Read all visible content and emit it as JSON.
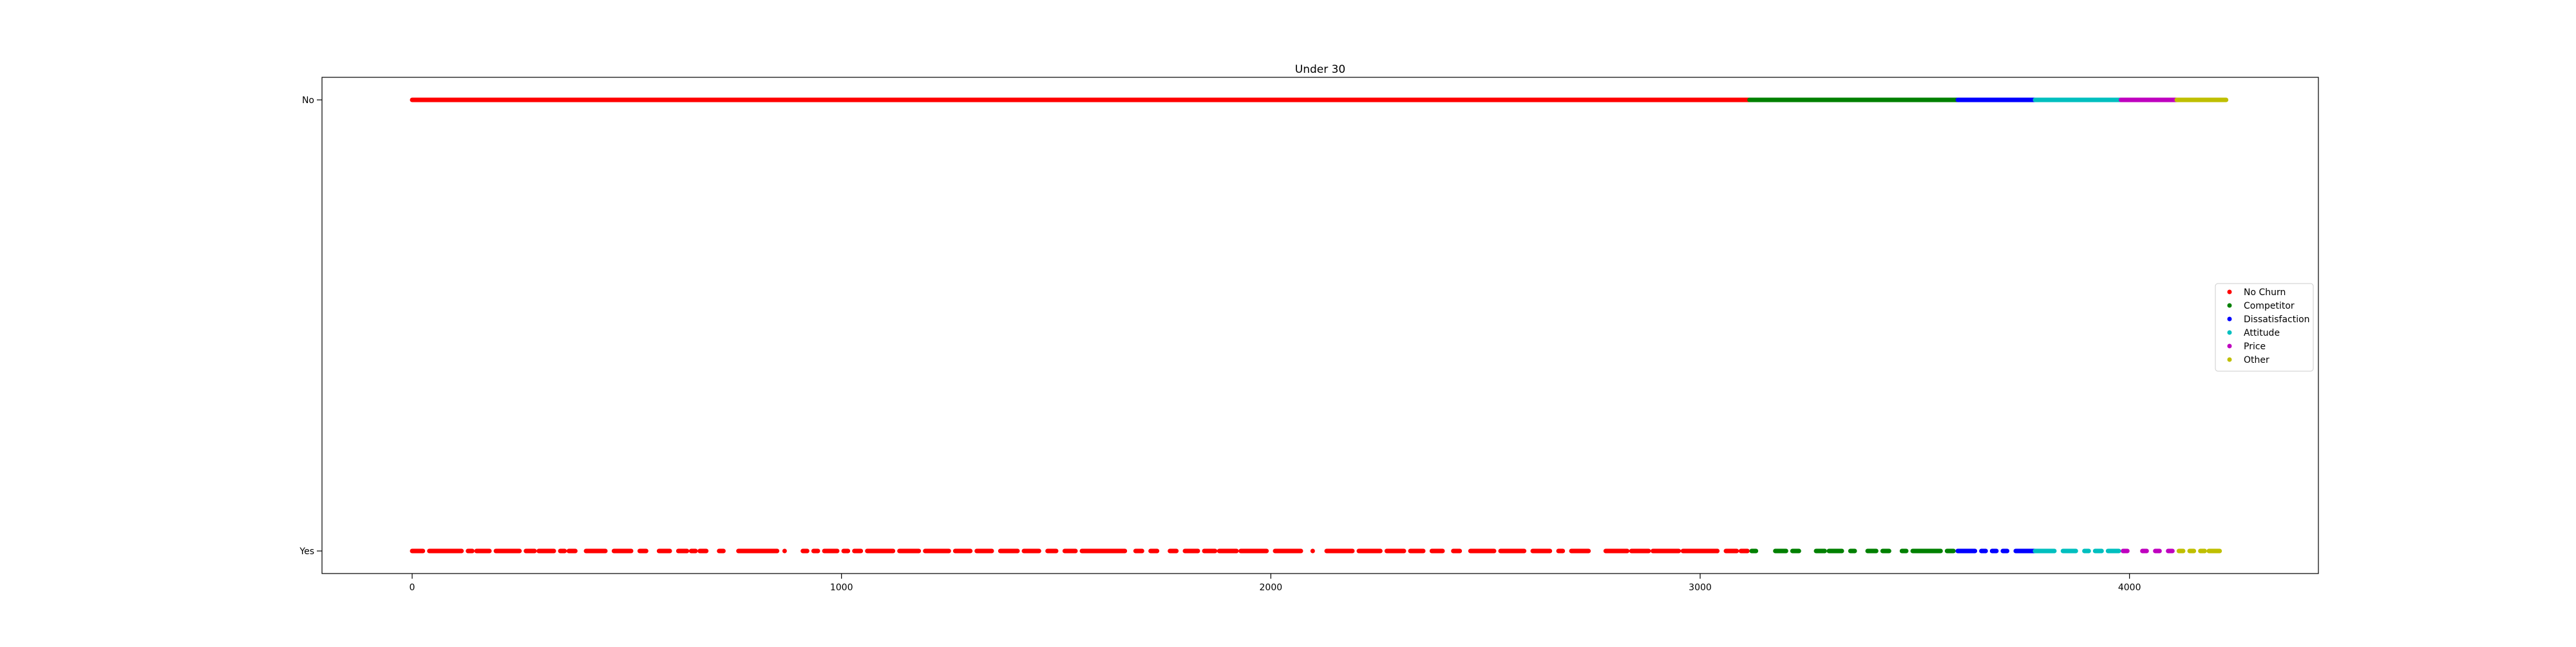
{
  "chart_data": {
    "type": "scatter",
    "title": "Under 30",
    "xlabel": "",
    "ylabel": "",
    "xlim": [
      -210,
      4440
    ],
    "x_ticks": [
      0,
      1000,
      2000,
      3000,
      4000
    ],
    "y_categories": [
      "Yes",
      "No"
    ],
    "grid": false,
    "legend_position": "right",
    "series": [
      {
        "name": "No Churn",
        "color": "#ff0000",
        "no_x": [
          [
            0,
            3115
          ]
        ],
        "yes_x": [
          [
            0,
            25
          ],
          [
            40,
            115
          ],
          [
            130,
            140
          ],
          [
            150,
            180
          ],
          [
            195,
            250
          ],
          [
            265,
            285
          ],
          [
            295,
            330
          ],
          [
            345,
            355
          ],
          [
            365,
            380
          ],
          [
            405,
            450
          ],
          [
            470,
            510
          ],
          [
            530,
            545
          ],
          [
            575,
            600
          ],
          [
            620,
            640
          ],
          [
            650,
            660
          ],
          [
            670,
            685
          ],
          [
            715,
            725
          ],
          [
            760,
            850
          ],
          [
            865,
            870
          ],
          [
            910,
            920
          ],
          [
            935,
            945
          ],
          [
            960,
            990
          ],
          [
            1005,
            1015
          ],
          [
            1030,
            1045
          ],
          [
            1060,
            1120
          ],
          [
            1135,
            1180
          ],
          [
            1195,
            1250
          ],
          [
            1265,
            1300
          ],
          [
            1315,
            1350
          ],
          [
            1370,
            1410
          ],
          [
            1425,
            1460
          ],
          [
            1480,
            1500
          ],
          [
            1520,
            1545
          ],
          [
            1560,
            1660
          ],
          [
            1685,
            1700
          ],
          [
            1720,
            1735
          ],
          [
            1765,
            1780
          ],
          [
            1800,
            1830
          ],
          [
            1845,
            1870
          ],
          [
            1880,
            1920
          ],
          [
            1930,
            1990
          ],
          [
            2010,
            2070
          ],
          [
            2095,
            2100
          ],
          [
            2130,
            2190
          ],
          [
            2205,
            2255
          ],
          [
            2270,
            2310
          ],
          [
            2325,
            2355
          ],
          [
            2375,
            2400
          ],
          [
            2425,
            2440
          ],
          [
            2465,
            2520
          ],
          [
            2535,
            2590
          ],
          [
            2610,
            2650
          ],
          [
            2670,
            2680
          ],
          [
            2700,
            2740
          ],
          [
            2780,
            2830
          ],
          [
            2840,
            2880
          ],
          [
            2890,
            2950
          ],
          [
            2960,
            3040
          ],
          [
            3060,
            3085
          ],
          [
            3095,
            3110
          ]
        ]
      },
      {
        "name": "Competitor",
        "color": "#008000",
        "no_x": [
          [
            3115,
            3600
          ]
        ],
        "yes_x": [
          [
            3120,
            3130
          ],
          [
            3175,
            3200
          ],
          [
            3215,
            3230
          ],
          [
            3270,
            3290
          ],
          [
            3300,
            3330
          ],
          [
            3350,
            3360
          ],
          [
            3390,
            3410
          ],
          [
            3425,
            3440
          ],
          [
            3470,
            3480
          ],
          [
            3495,
            3560
          ],
          [
            3575,
            3590
          ]
        ]
      },
      {
        "name": "Dissatisfaction",
        "color": "#0000ff",
        "no_x": [
          [
            3600,
            3780
          ]
        ],
        "yes_x": [
          [
            3600,
            3640
          ],
          [
            3655,
            3665
          ],
          [
            3680,
            3690
          ],
          [
            3705,
            3715
          ],
          [
            3735,
            3780
          ]
        ]
      },
      {
        "name": "Attitude",
        "color": "#00bfbf",
        "no_x": [
          [
            3780,
            3980
          ]
        ],
        "yes_x": [
          [
            3780,
            3825
          ],
          [
            3845,
            3875
          ],
          [
            3895,
            3905
          ],
          [
            3920,
            3935
          ],
          [
            3950,
            3975
          ]
        ]
      },
      {
        "name": "Price",
        "color": "#bf00bf",
        "no_x": [
          [
            3980,
            4110
          ]
        ],
        "yes_x": [
          [
            3985,
            3995
          ],
          [
            4030,
            4040
          ],
          [
            4060,
            4070
          ],
          [
            4090,
            4100
          ]
        ]
      },
      {
        "name": "Other",
        "color": "#bfbf00",
        "no_x": [
          [
            4110,
            4225
          ]
        ],
        "yes_x": [
          [
            4115,
            4125
          ],
          [
            4140,
            4150
          ],
          [
            4165,
            4175
          ],
          [
            4185,
            4210
          ]
        ]
      }
    ]
  }
}
